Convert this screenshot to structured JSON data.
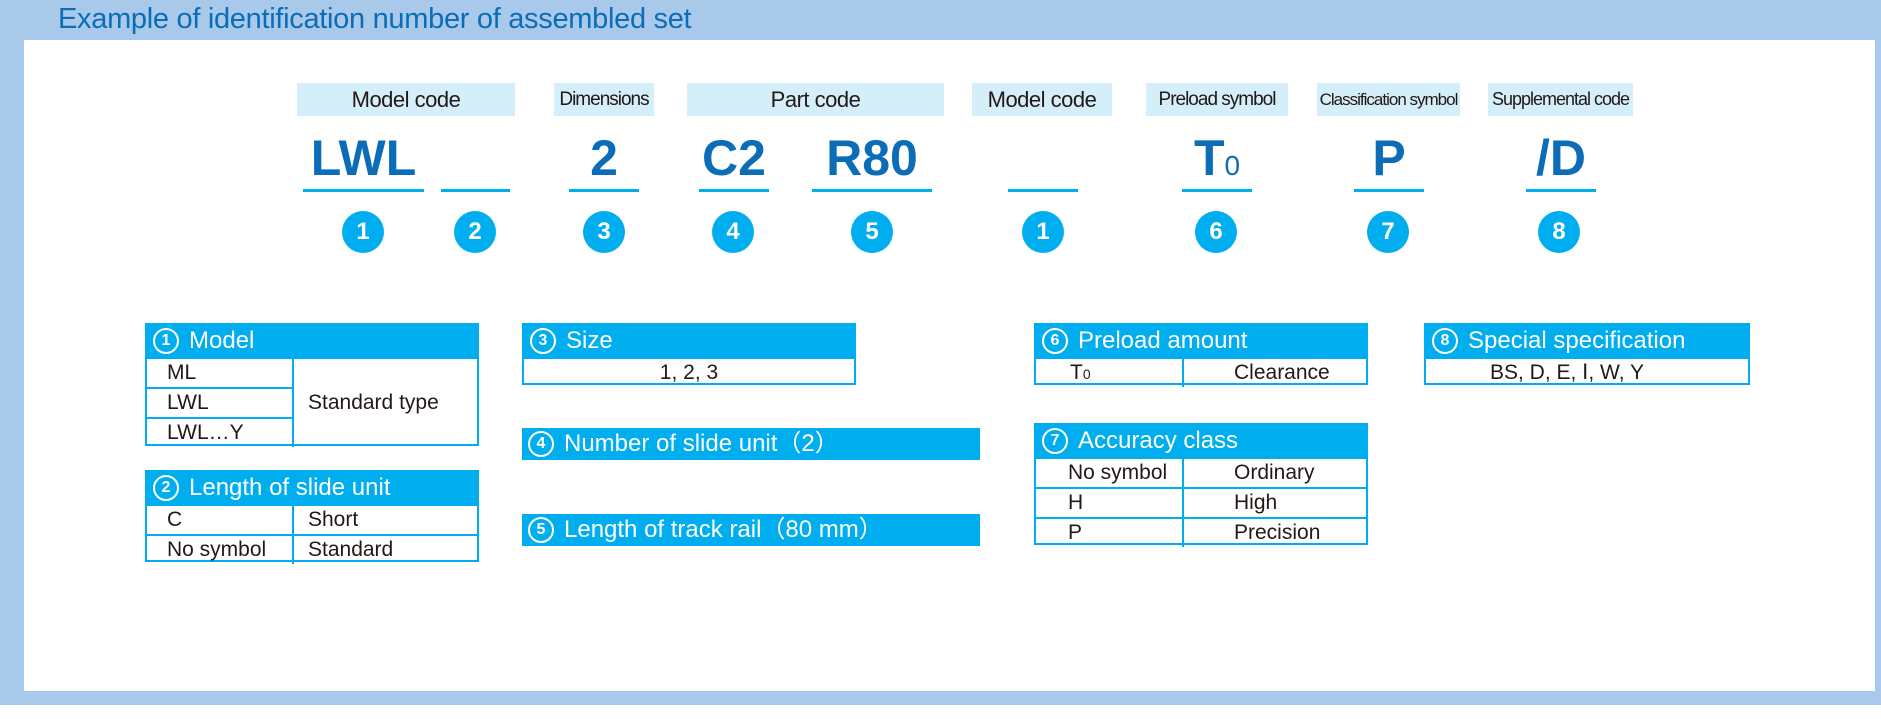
{
  "title": "Example of identification number of assembled set",
  "labels": [
    "Model code",
    "Dimensions",
    "Part code",
    "Model code",
    "Preload symbol",
    "Classification symbol",
    "Supplemental code"
  ],
  "codes": {
    "c1": "LWL",
    "c2": "",
    "c3": "2",
    "c4": "C2",
    "c5": "R80",
    "c6": "",
    "c7_main": "T",
    "c7_sub": "0",
    "c8": "P",
    "c9": "/D"
  },
  "numbers": [
    "1",
    "2",
    "3",
    "4",
    "5",
    "1",
    "6",
    "7",
    "8"
  ],
  "colors": {
    "accent": "#00aeef",
    "title": "#0b6db7",
    "background": "#a9c9ea",
    "label_bg": "#d4eefa"
  },
  "model": {
    "num": "1",
    "title": "Model",
    "rows": [
      "ML",
      "LWL",
      "LWL…Y"
    ],
    "value": "Standard type"
  },
  "length": {
    "num": "2",
    "title": "Length of slide unit",
    "rows": [
      [
        "C",
        "Short"
      ],
      [
        "No symbol",
        "Standard"
      ]
    ]
  },
  "size": {
    "num": "3",
    "title": "Size",
    "value": "1, 2, 3"
  },
  "slide_units": {
    "num": "4",
    "title": "Number of slide unit（2）"
  },
  "rail": {
    "num": "5",
    "title": "Length of track rail（80 mm）"
  },
  "preload": {
    "num": "6",
    "title": "Preload amount",
    "sym_main": "T",
    "sym_sub": "0",
    "value": "Clearance"
  },
  "accuracy": {
    "num": "7",
    "title": "Accuracy class",
    "rows": [
      [
        "No symbol",
        "Ordinary"
      ],
      [
        "H",
        "High"
      ],
      [
        "P",
        "Precision"
      ]
    ]
  },
  "special": {
    "num": "8",
    "title": "Special specification",
    "value": "BS, D, E, Ⅰ, W, Y"
  }
}
